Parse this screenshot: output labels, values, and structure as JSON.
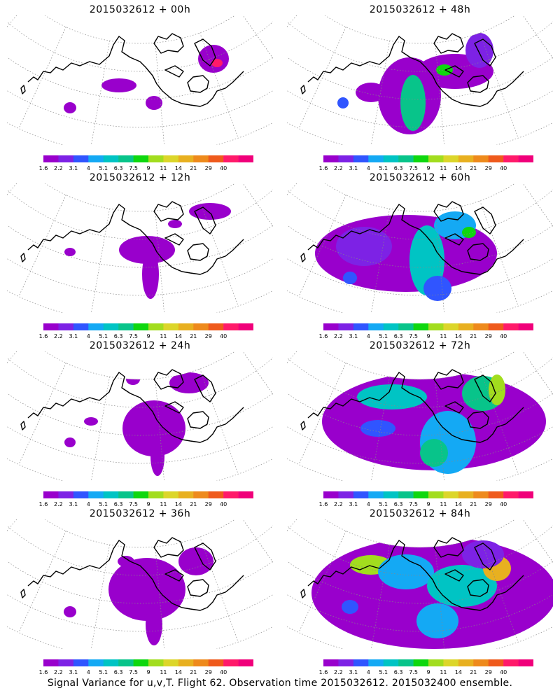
{
  "footer": "Signal Variance for u,v,T. Flight 62. Observation time 2015032612. 2015032400 ensemble.",
  "colorbar": {
    "labels": [
      "1.6",
      "2.2",
      "3.1",
      "4",
      "5.1",
      "6.3",
      "7.5",
      "9",
      "11",
      "14",
      "21",
      "29",
      "40"
    ],
    "colors": [
      "#9900cc",
      "#7d22e5",
      "#3055ff",
      "#14a9f4",
      "#00c4c4",
      "#08c48a",
      "#0ed70e",
      "#a2dd1e",
      "#dcd62a",
      "#e8b020",
      "#ee8a1c",
      "#ef5a1c",
      "#ff1a6a",
      "#f0007a"
    ]
  },
  "panels": [
    {
      "title": "2015032612 + 00h"
    },
    {
      "title": "2015032612 + 48h"
    },
    {
      "title": "2015032612 + 12h"
    },
    {
      "title": "2015032612 + 60h"
    },
    {
      "title": "2015032612 + 24h"
    },
    {
      "title": "2015032612 + 72h"
    },
    {
      "title": "2015032612 + 36h"
    },
    {
      "title": "2015032612 + 84h"
    }
  ]
}
